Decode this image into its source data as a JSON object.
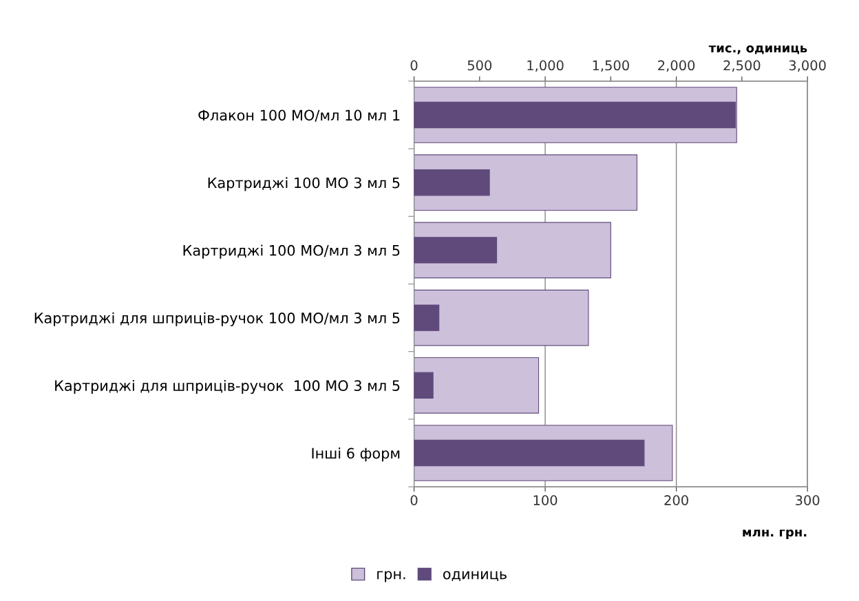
{
  "chart_data": {
    "type": "bar",
    "orientation": "horizontal",
    "categories": [
      "Флакон 100 МО/мл 10 мл 1",
      "Картриджі 100 МО 3 мл 5",
      "Картриджі 100 МО/мл 3 мл 5",
      "Картриджі для шприців-ручок 100 МО/мл 3 мл 5",
      "Картриджі для шприців-ручок  100 МО 3 мл 5",
      "Інші 6 форм"
    ],
    "series": [
      {
        "name": "грн.",
        "color": "#ccc0da",
        "values": [
          246,
          170,
          150,
          133,
          95,
          197
        ]
      },
      {
        "name": "одиниць",
        "color": "#604a7b",
        "axis": "x2",
        "values": [
          2450,
          575,
          630,
          190,
          145,
          1755
        ]
      }
    ],
    "xlabel": "млн. грн.",
    "x2label": "тис., одиниць",
    "xlim": [
      0,
      300
    ],
    "xticks": [
      0,
      100,
      200,
      300
    ],
    "x2lim": [
      0,
      3000
    ],
    "x2ticks": [
      0,
      500,
      {
        "value": 1000,
        "label": "1,000"
      },
      {
        "value": 1500,
        "label": "1,500"
      },
      {
        "value": 2000,
        "label": "2,000"
      },
      {
        "value": 2500,
        "label": "2,500"
      },
      {
        "value": 3000,
        "label": "3,000"
      }
    ],
    "grid": "x",
    "legend": "bottom"
  }
}
